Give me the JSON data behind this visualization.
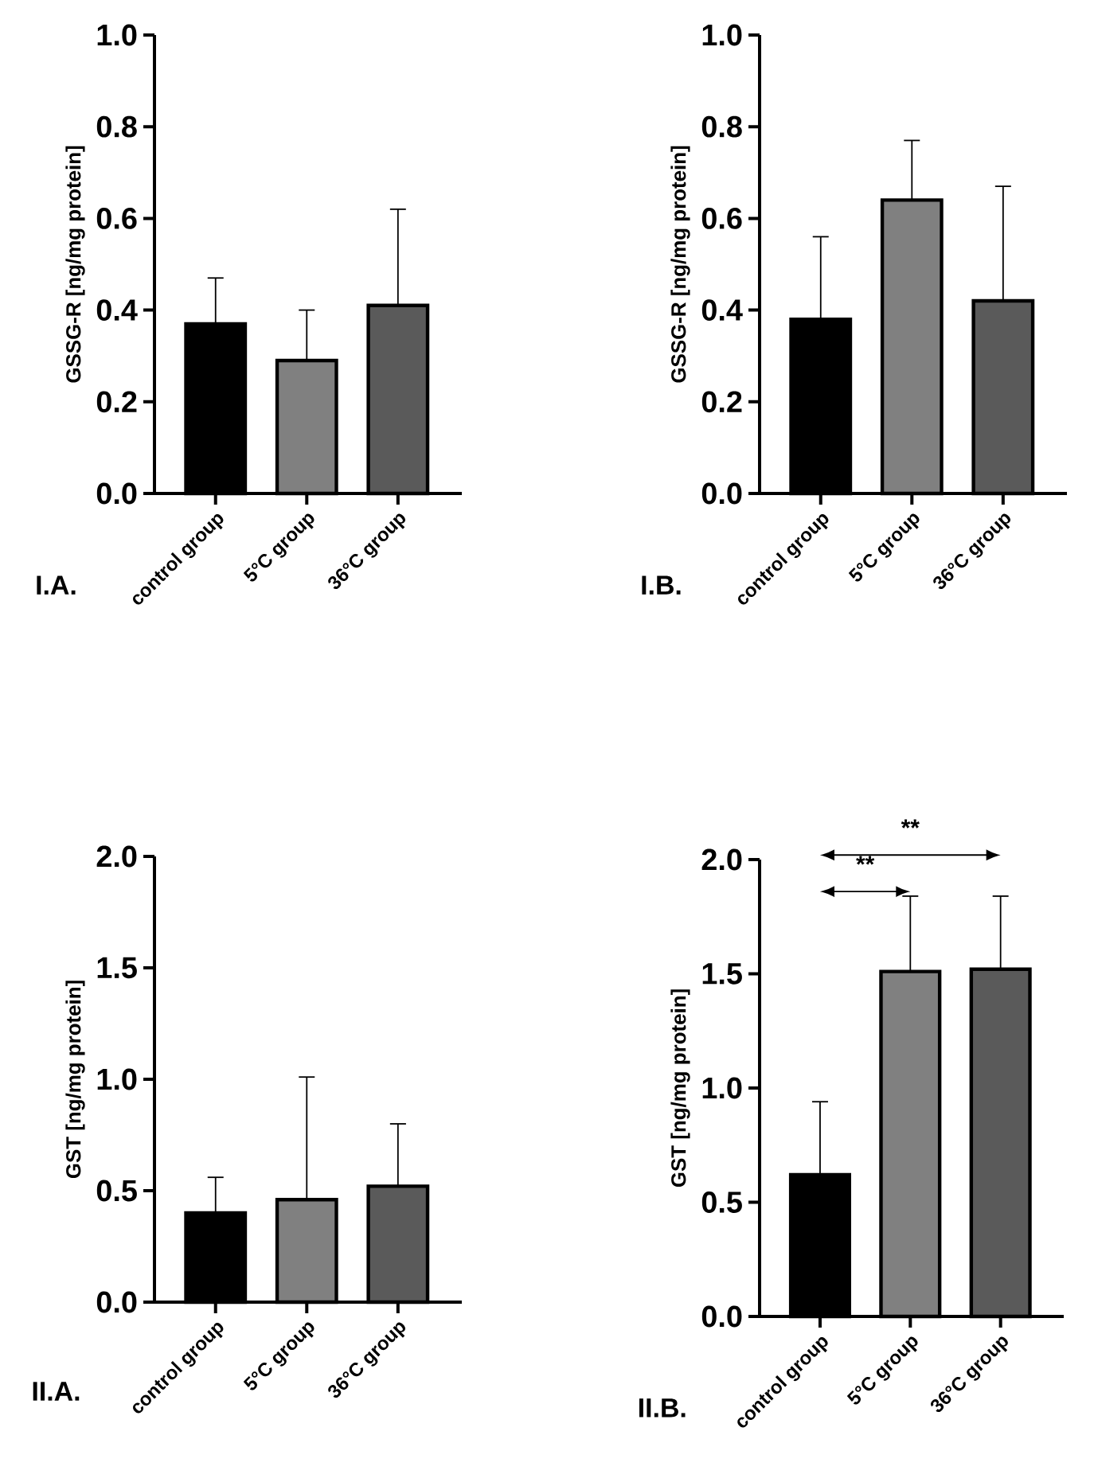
{
  "chart_data": [
    {
      "type": "bar",
      "ylabel": "GSSG-R [ng/mg protein]",
      "categories": [
        "control group",
        "5°C group",
        "36°C group"
      ],
      "values": [
        0.37,
        0.29,
        0.41
      ],
      "colors": [
        "#000000",
        "#808080",
        "#5a5a5a"
      ],
      "errors": [
        [
          0.37,
          0.47
        ],
        [
          0.29,
          0.4
        ],
        [
          0.41,
          0.62
        ]
      ],
      "ylim": [
        0,
        1.0
      ],
      "yticks": [
        {
          "value": 0,
          "label": "0.0"
        },
        0.2,
        0.4,
        0.6,
        0.8,
        {
          "value": 1.0,
          "label": "1.0"
        }
      ],
      "annotations": [
        "I.A."
      ]
    },
    {
      "type": "bar",
      "ylabel": "GSSG-R [ng/mg protein]",
      "categories": [
        "control group",
        "5°C group",
        "36°C group"
      ],
      "values": [
        0.38,
        0.64,
        0.42
      ],
      "colors": [
        "#000000",
        "#808080",
        "#5a5a5a"
      ],
      "errors": [
        [
          0.38,
          0.56
        ],
        [
          0.64,
          0.77
        ],
        [
          0.42,
          0.67
        ]
      ],
      "ylim": [
        0,
        1.0
      ],
      "yticks": [
        {
          "value": 0,
          "label": "0.0"
        },
        0.2,
        0.4,
        0.6,
        0.8,
        {
          "value": 1.0,
          "label": "1.0"
        }
      ],
      "annotations": [
        "I.B."
      ]
    },
    {
      "type": "bar",
      "ylabel": "GST [ng/mg protein]",
      "categories": [
        "control group",
        "5°C group",
        "36°C group"
      ],
      "values": [
        0.4,
        0.46,
        0.52
      ],
      "colors": [
        "#000000",
        "#808080",
        "#5a5a5a"
      ],
      "errors": [
        [
          0.4,
          0.56
        ],
        [
          0.46,
          1.01
        ],
        [
          0.52,
          0.8
        ]
      ],
      "ylim": [
        0,
        2.0
      ],
      "yticks": [
        {
          "value": 0,
          "label": "0.0"
        },
        0.5,
        {
          "value": 1.0,
          "label": "1.0"
        },
        1.5,
        {
          "value": 2.0,
          "label": "2.0"
        }
      ],
      "annotations": [
        "II.A."
      ]
    },
    {
      "type": "bar",
      "ylabel": "GST [ng/mg protein]",
      "categories": [
        "control group",
        "5°C group",
        "36°C group"
      ],
      "values": [
        0.62,
        1.51,
        1.52
      ],
      "colors": [
        "#000000",
        "#808080",
        "#5a5a5a"
      ],
      "errors": [
        [
          0.62,
          0.94
        ],
        [
          1.51,
          1.84
        ],
        [
          1.52,
          1.84
        ]
      ],
      "ylim": [
        0,
        2.0
      ],
      "yticks": [
        {
          "value": 0,
          "label": "0.0"
        },
        0.5,
        {
          "value": 1.0,
          "label": "1.0"
        },
        1.5,
        {
          "value": 2.0,
          "label": "2.0"
        }
      ],
      "annotations": [
        "II.B.",
        "**",
        "**"
      ]
    }
  ]
}
